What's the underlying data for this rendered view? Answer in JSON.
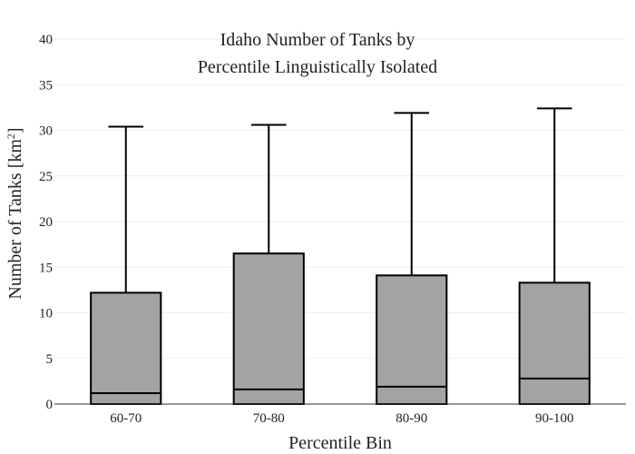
{
  "chart_data": {
    "type": "box",
    "title_lines": [
      "Idaho Number of Tanks by",
      "Percentile Linguistically Isolated"
    ],
    "xlabel": "Percentile Bin",
    "ylabel_main": "Number of Tanks  [km",
    "ylabel_sup": "2",
    "ylabel_close": "]",
    "ylim": [
      0,
      40
    ],
    "yticks": [
      "0",
      "5",
      "10",
      "15",
      "20",
      "25",
      "30",
      "35",
      "40"
    ],
    "grid": true,
    "box_color": "#a3a3a3",
    "categories": [
      "60-70",
      "70-80",
      "80-90",
      "90-100"
    ],
    "boxes": [
      {
        "min": 0,
        "q1": 0,
        "median": 1.2,
        "q3": 12.2,
        "max": 30.4
      },
      {
        "min": 0,
        "q1": 0,
        "median": 1.6,
        "q3": 16.5,
        "max": 30.6
      },
      {
        "min": 0,
        "q1": 0,
        "median": 1.9,
        "q3": 14.1,
        "max": 31.9
      },
      {
        "min": 0,
        "q1": 0,
        "median": 2.8,
        "q3": 13.3,
        "max": 32.4
      }
    ]
  }
}
